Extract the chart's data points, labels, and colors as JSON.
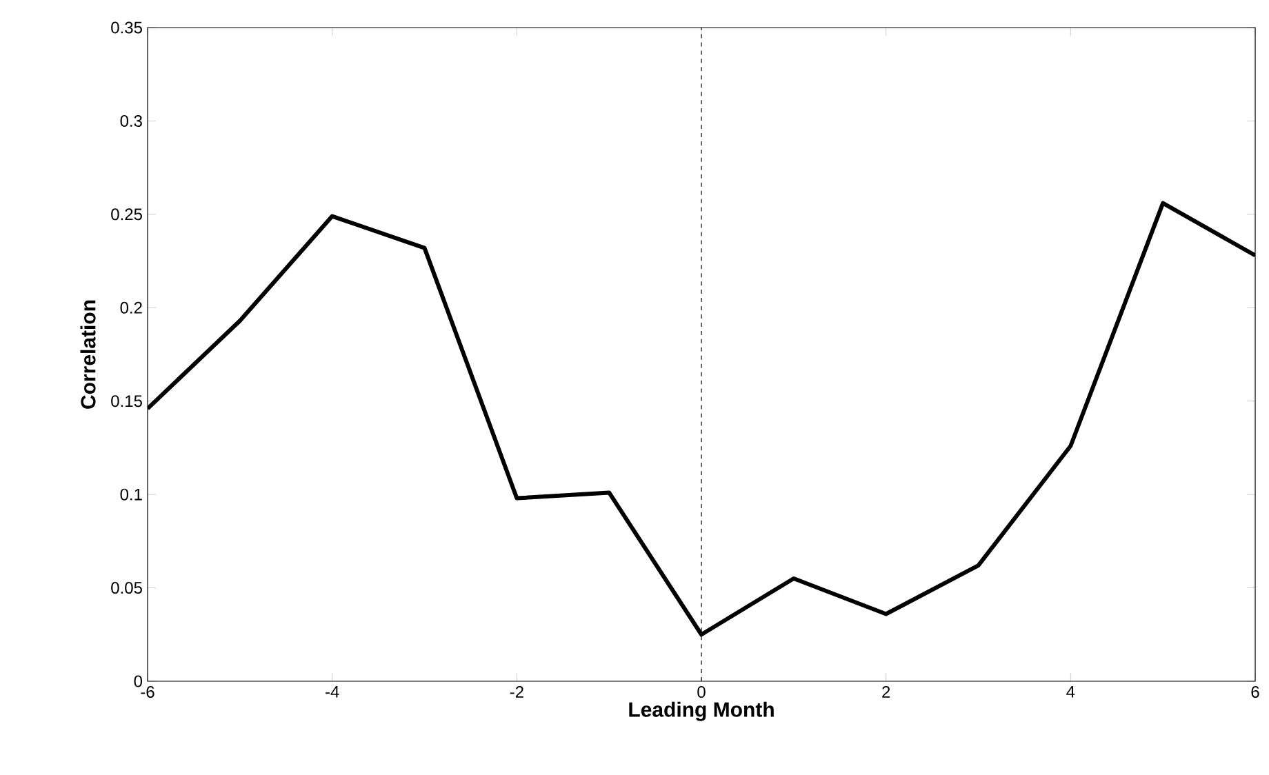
{
  "chart_data": {
    "type": "line",
    "xlabel": "Leading Month",
    "ylabel": "Correlation",
    "x": [
      -6,
      -5,
      -4,
      -3,
      -2,
      -1,
      0,
      1,
      2,
      3,
      4,
      5,
      6
    ],
    "series": [
      {
        "color": "#000000",
        "values": [
          0.146,
          0.193,
          0.249,
          0.232,
          0.098,
          0.101,
          0.025,
          0.055,
          0.036,
          0.062,
          0.126,
          0.256,
          0.228
        ]
      }
    ],
    "xlim": [
      -6,
      6
    ],
    "ylim": [
      0,
      0.35
    ],
    "xticks": [
      -6,
      -4,
      -2,
      0,
      2,
      4,
      6
    ],
    "yticks": [
      0,
      0.05,
      0.1,
      0.15,
      0.2,
      0.25,
      0.3,
      0.35
    ],
    "ref_lines": [
      {
        "axis": "x",
        "value": 0,
        "line_style": "dashed",
        "color": "#000000"
      }
    ],
    "line_style": "solid"
  }
}
